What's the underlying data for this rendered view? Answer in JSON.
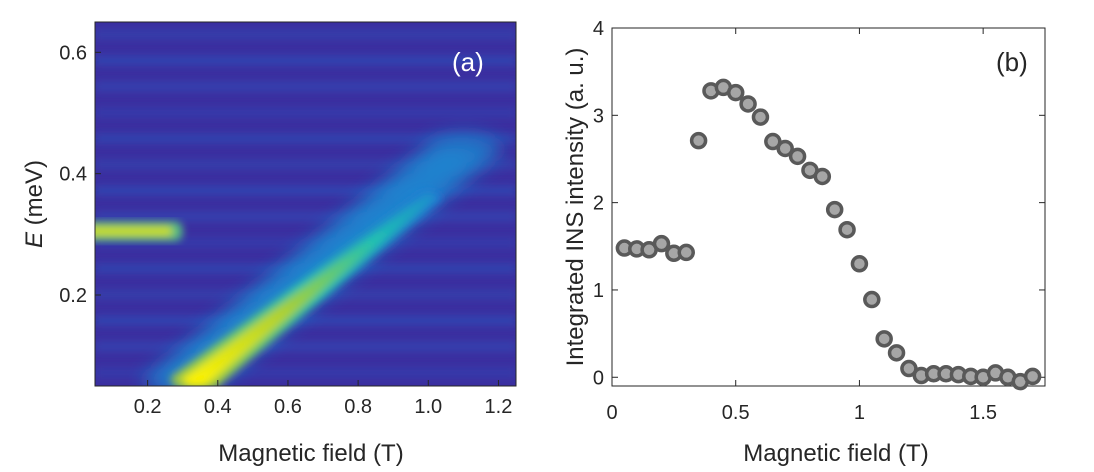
{
  "chart_data": [
    {
      "type": "heatmap",
      "panel_label": "(a)",
      "xlabel": "Magnetic field (T)",
      "ylabel_italic": "E",
      "ylabel_rest": " (meV)",
      "xlim": [
        0.05,
        1.25
      ],
      "ylim": [
        0.05,
        0.65
      ],
      "xticks": [
        "0.2",
        "0.4",
        "0.6",
        "0.8",
        "1.0",
        "1.2"
      ],
      "yticks": [
        "0.2",
        "0.4",
        "0.6"
      ],
      "colormap": [
        "#3b2fa0",
        "#1c78d8",
        "#21c4b0",
        "#b0d030",
        "#fff200"
      ],
      "features": [
        {
          "kind": "flat_mode",
          "x_range": [
            0.05,
            0.3
          ],
          "energy": 0.305,
          "intensity": 0.85
        },
        {
          "kind": "rising_branch",
          "from": [
            0.34,
            0.06
          ],
          "to": [
            1.0,
            0.36
          ],
          "intensity_start": 1.0,
          "intensity_end": 0.35
        },
        {
          "kind": "diffuse_band",
          "from": [
            0.3,
            0.06
          ],
          "to": [
            1.1,
            0.44
          ],
          "intensity": 0.3
        }
      ]
    },
    {
      "type": "scatter",
      "panel_label": "(b)",
      "xlabel": "Magnetic field (T)",
      "ylabel": "Integrated INS intensity (a. u.)",
      "xlim": [
        0,
        1.75
      ],
      "ylim": [
        -0.1,
        4
      ],
      "xticks": [
        "0",
        "0.5",
        "1",
        "1.5"
      ],
      "yticks": [
        "0",
        "1",
        "2",
        "3",
        "4"
      ],
      "marker_fill": "#a6a6a6",
      "marker_edge": "#595959",
      "x": [
        0.05,
        0.1,
        0.15,
        0.2,
        0.25,
        0.3,
        0.35,
        0.4,
        0.45,
        0.5,
        0.55,
        0.6,
        0.65,
        0.7,
        0.75,
        0.8,
        0.85,
        0.9,
        0.95,
        1.0,
        1.05,
        1.1,
        1.15,
        1.2,
        1.25,
        1.3,
        1.35,
        1.4,
        1.45,
        1.5,
        1.55,
        1.6,
        1.65,
        1.7
      ],
      "y": [
        1.48,
        1.47,
        1.46,
        1.53,
        1.42,
        1.43,
        2.71,
        3.28,
        3.32,
        3.26,
        3.13,
        2.98,
        2.7,
        2.62,
        2.53,
        2.37,
        2.3,
        1.92,
        1.69,
        1.3,
        0.89,
        0.44,
        0.28,
        0.1,
        0.02,
        0.04,
        0.04,
        0.03,
        0.01,
        0.0,
        0.05,
        0.0,
        -0.05,
        0.01
      ]
    }
  ]
}
